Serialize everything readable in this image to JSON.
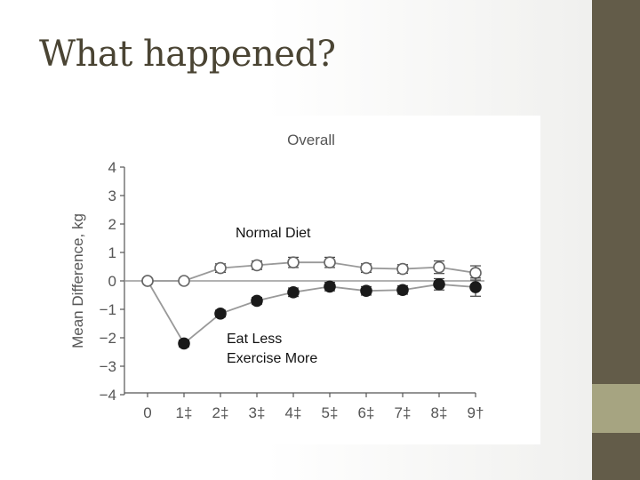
{
  "slide": {
    "title": "What happened?"
  },
  "colors": {
    "sidebar_dark": "#635c49",
    "sidebar_accent": "#a6a481",
    "title_text": "#4a4433",
    "axis": "#555555",
    "series_line": "#999999",
    "open_marker": "#ffffff",
    "filled_marker": "#1a1a1a"
  },
  "annotations": {
    "normal_diet": "Normal Diet",
    "eat_less_line1": "Eat Less",
    "eat_less_line2": "Exercise More"
  },
  "chart_data": {
    "type": "line",
    "title": "Overall",
    "ylabel": "Mean Difference, kg",
    "xlabel": "",
    "categories": [
      "0",
      "1‡",
      "2‡",
      "3‡",
      "4‡",
      "5‡",
      "6‡",
      "7‡",
      "8‡",
      "9†"
    ],
    "ylim": [
      -4,
      4
    ],
    "yticks": [
      4,
      3,
      2,
      1,
      0,
      -1,
      -2,
      -3,
      -4
    ],
    "ytick_labels": [
      "4",
      "3",
      "2",
      "1",
      "0",
      "−1",
      "−2",
      "−3",
      "−4"
    ],
    "grid": false,
    "series": [
      {
        "marker": "open",
        "values": [
          0,
          0,
          0.45,
          0.55,
          0.65,
          0.65,
          0.45,
          0.42,
          0.48,
          0.28
        ],
        "error": [
          0,
          0,
          0.15,
          0.15,
          0.18,
          0.18,
          0.15,
          0.15,
          0.22,
          0.25
        ]
      },
      {
        "marker": "filled",
        "values": [
          0,
          -2.2,
          -1.15,
          -0.7,
          -0.4,
          -0.2,
          -0.35,
          -0.32,
          -0.12,
          -0.22
        ],
        "error": [
          0,
          0.12,
          0.12,
          0.12,
          0.15,
          0.15,
          0.15,
          0.15,
          0.2,
          0.32
        ]
      }
    ]
  }
}
